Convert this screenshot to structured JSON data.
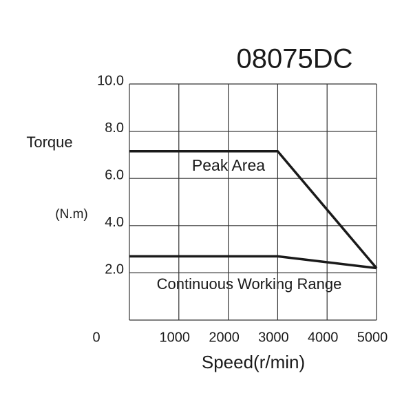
{
  "chart_data": {
    "type": "line",
    "title": "08075DC",
    "y_label": "Torque",
    "y_unit": "(N.m)",
    "x_label": "Speed(r/min)",
    "annotations": [
      "Peak Area",
      "Continuous Working Range"
    ],
    "series": [
      {
        "x": [
          0,
          3000,
          5000
        ],
        "values": [
          7.15,
          7.15,
          2.2
        ],
        "color": "#1a1a1a"
      },
      {
        "x": [
          0,
          3000,
          5000
        ],
        "values": [
          2.7,
          2.7,
          2.2
        ],
        "color": "#1a1a1a"
      }
    ],
    "xlim": [
      0,
      5000
    ],
    "xticks": [
      0,
      1000,
      2000,
      3000,
      4000,
      5000
    ],
    "ylim": [
      0,
      10
    ],
    "yticks": [
      {
        "value": 2,
        "label": "2.0"
      },
      {
        "value": 4,
        "label": "4.0"
      },
      {
        "value": 6,
        "label": "6.0"
      },
      {
        "value": 8,
        "label": "8.0"
      },
      {
        "value": 10,
        "label": "10.0"
      }
    ],
    "grid": true
  }
}
